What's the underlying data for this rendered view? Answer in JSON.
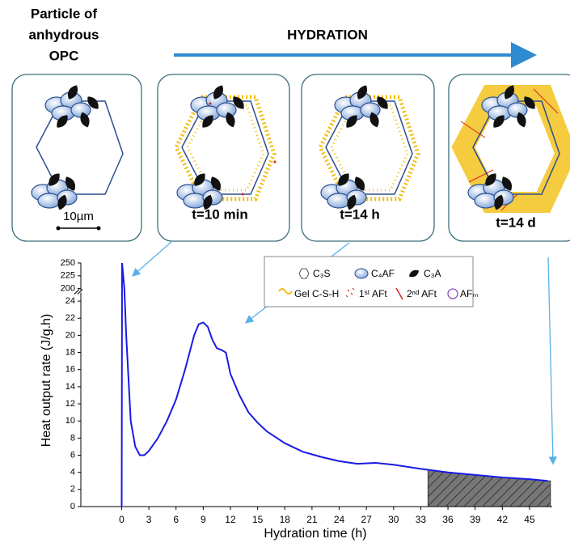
{
  "header": {
    "particle_label": [
      "Particle of",
      "anhydrous",
      "OPC"
    ],
    "process_label": "HYDRATION"
  },
  "panels": [
    {
      "label": "10µm"
    },
    {
      "label": "t=10 min"
    },
    {
      "label": "t=14 h"
    },
    {
      "label": "t=14 d"
    }
  ],
  "legend": [
    {
      "label": "C₃S"
    },
    {
      "label": "C₄AF"
    },
    {
      "label": "C₃A"
    },
    {
      "label": "Gel C-S-H"
    },
    {
      "label": "1ˢᵗ AFt"
    },
    {
      "label": "2ⁿᵈ AFt"
    },
    {
      "label": "AFₘ"
    }
  ],
  "chart_data": {
    "type": "line",
    "x_label": "Hydration time (h)",
    "y_label": "Heat output rate (J/g.h)",
    "color": "#1a1ae6",
    "x": [
      0,
      0.05,
      0.3,
      0.5,
      1,
      1.5,
      2,
      2.5,
      3,
      4,
      5,
      6,
      7,
      8,
      8.5,
      9,
      9.5,
      10,
      10.5,
      11,
      11.5,
      12,
      13,
      14,
      15,
      16,
      18,
      20,
      22,
      24,
      26,
      28,
      30,
      33,
      36,
      39,
      42,
      45,
      47
    ],
    "values": [
      0,
      250,
      200,
      20,
      10,
      7,
      6,
      6,
      6.5,
      8,
      10,
      12.5,
      16,
      20,
      21.3,
      21.5,
      21,
      19.5,
      18.5,
      18.3,
      18,
      15.5,
      13,
      11,
      9.8,
      8.8,
      7.4,
      6.4,
      5.8,
      5.3,
      5,
      5.1,
      4.9,
      4.4,
      4,
      3.7,
      3.4,
      3.2,
      3
    ],
    "xlim": [
      -4.5,
      47.5
    ],
    "xticks": [
      0,
      3,
      6,
      9,
      12,
      15,
      18,
      21,
      24,
      27,
      30,
      33,
      36,
      39,
      42,
      45
    ],
    "ylim": [
      0,
      250
    ],
    "y_break": [
      25,
      197
    ],
    "yticks": [
      0,
      2,
      4,
      6,
      8,
      10,
      12,
      14,
      16,
      18,
      20,
      22,
      24,
      200,
      225,
      250
    ],
    "shaded_xrange": [
      33.8,
      47.3
    ],
    "grid": false
  }
}
